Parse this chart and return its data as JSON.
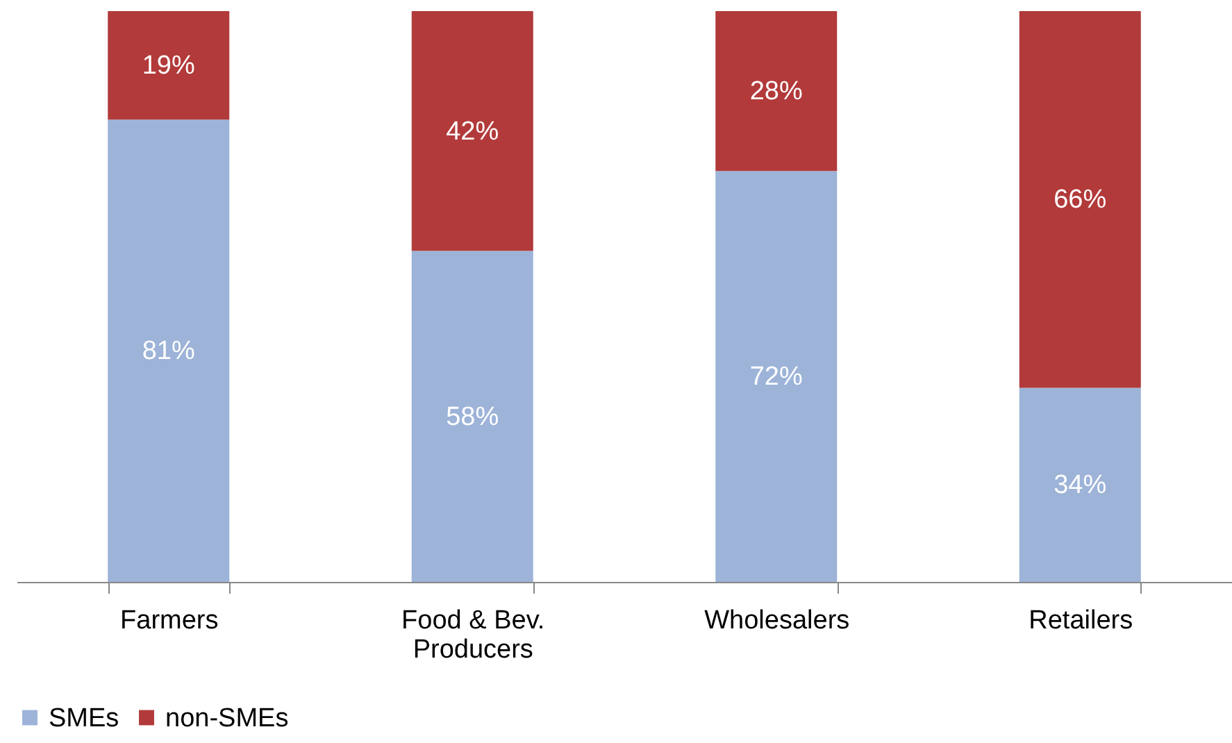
{
  "chart_data": {
    "type": "bar",
    "stacked": true,
    "categories": [
      "Farmers",
      "Food & Bev. Producers",
      "Wholesalers",
      "Retailers"
    ],
    "series": [
      {
        "name": "SMEs",
        "color": "#9db3d8",
        "values": [
          81,
          58,
          72,
          34
        ],
        "value_labels": [
          "81%",
          "58%",
          "72%",
          "34%"
        ]
      },
      {
        "name": "non-SMEs",
        "color": "#b23a3a",
        "values": [
          19,
          42,
          28,
          66
        ],
        "value_labels": [
          "19%",
          "42%",
          "28%",
          "66%"
        ]
      }
    ],
    "legend": "bottom",
    "grid": false
  }
}
